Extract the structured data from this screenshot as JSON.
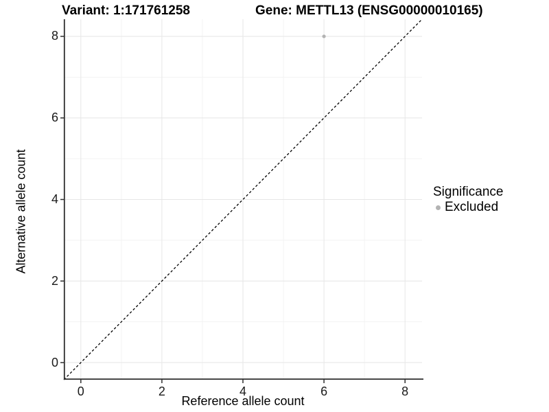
{
  "titles": {
    "variant": "Variant: 1:171761258",
    "gene": "Gene: METTL13 (ENSG00000010165)"
  },
  "axes": {
    "x": {
      "label": "Reference allele count",
      "tick_labels": [
        "0",
        "2",
        "4",
        "6",
        "8"
      ]
    },
    "y": {
      "label": "Alternative allele count",
      "tick_labels": [
        "0",
        "2",
        "4",
        "6",
        "8"
      ]
    }
  },
  "legend": {
    "title": "Significance",
    "items": [
      {
        "label": "Excluded",
        "color": "#b3b3b3"
      }
    ]
  },
  "colors": {
    "point": "#b3b3b3",
    "grid_major": "#e6e6e6",
    "grid_minor": "#f3f3f3",
    "axis_line": "#2e2e2e",
    "dashed_line": "#000000",
    "text": "#000000"
  },
  "chart_data": {
    "type": "scatter",
    "title": "Variant: 1:171761258 | Gene: METTL13 (ENSG00000010165)",
    "xlabel": "Reference allele count",
    "ylabel": "Alternative allele count",
    "xlim": [
      -0.42,
      8.42
    ],
    "ylim": [
      -0.42,
      8.42
    ],
    "x_major_ticks": [
      0,
      2,
      4,
      6,
      8
    ],
    "y_major_ticks": [
      0,
      2,
      4,
      6,
      8
    ],
    "x_minor_ticks": [
      1,
      3,
      5,
      7
    ],
    "y_minor_ticks": [
      1,
      3,
      5,
      7
    ],
    "grid": "major+minor",
    "legend_position": "right",
    "reference_line": {
      "type": "identity",
      "equation": "y = x",
      "style": "dashed",
      "color": "#000000"
    },
    "series": [
      {
        "name": "Excluded",
        "color": "#b3b3b3",
        "marker": "circle",
        "points": [
          {
            "x": 6,
            "y": 8
          }
        ]
      }
    ]
  }
}
